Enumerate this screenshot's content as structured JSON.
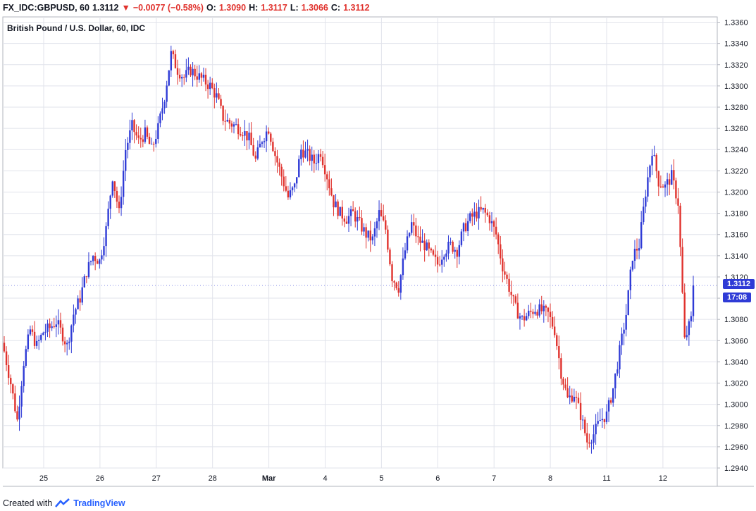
{
  "header": {
    "symbol": "FX_IDC:GBPUSD, 60",
    "last": "1.3112",
    "change": "−0.0077 (−0.58%)",
    "o_label": "O:",
    "o_value": "1.3090",
    "h_label": "H:",
    "h_value": "1.3117",
    "l_label": "L:",
    "l_value": "1.3066",
    "c_label": "C:",
    "c_value": "1.3112"
  },
  "footer": {
    "created_with": "Created with",
    "brand": "TradingView"
  },
  "price_tag": {
    "price": "1.3112",
    "countdown": "17:08"
  },
  "colors": {
    "up": "#2f3bd6",
    "down": "#e0322d",
    "grid": "#e1e3eb",
    "axis_text": "#131722"
  },
  "chart_data": {
    "type": "candlestick",
    "title": "British Pound / U.S. Dollar, 60, IDC",
    "ylim": [
      1.294,
      1.3365
    ],
    "y_ticks": [
      "1.2940",
      "1.2960",
      "1.2980",
      "1.3000",
      "1.3020",
      "1.3040",
      "1.3060",
      "1.3080",
      "1.3100",
      "1.3120",
      "1.3140",
      "1.3160",
      "1.3180",
      "1.3200",
      "1.3220",
      "1.3240",
      "1.3260",
      "1.3280",
      "1.3300",
      "1.3320",
      "1.3340",
      "1.3360"
    ],
    "x_ticks": [
      "25",
      "26",
      "27",
      "28",
      "Mar",
      "4",
      "5",
      "6",
      "7",
      "8",
      "11",
      "12"
    ],
    "grid": true,
    "close_path": [
      [
        0,
        1.305
      ],
      [
        3,
        1.302
      ],
      [
        6,
        1.2985
      ],
      [
        9,
        1.304
      ],
      [
        12,
        1.307
      ],
      [
        15,
        1.3055
      ],
      [
        18,
        1.3068
      ],
      [
        21,
        1.3072
      ],
      [
        24,
        1.3078
      ],
      [
        27,
        1.3065
      ],
      [
        29,
        1.3055
      ],
      [
        32,
        1.3085
      ],
      [
        35,
        1.31
      ],
      [
        38,
        1.3125
      ],
      [
        41,
        1.314
      ],
      [
        44,
        1.3135
      ],
      [
        47,
        1.3165
      ],
      [
        50,
        1.3215
      ],
      [
        53,
        1.318
      ],
      [
        56,
        1.324
      ],
      [
        59,
        1.3262
      ],
      [
        62,
        1.3248
      ],
      [
        65,
        1.3255
      ],
      [
        68,
        1.324
      ],
      [
        71,
        1.326
      ],
      [
        74,
        1.329
      ],
      [
        77,
        1.333
      ],
      [
        80,
        1.3315
      ],
      [
        83,
        1.3308
      ],
      [
        86,
        1.3315
      ],
      [
        89,
        1.331
      ],
      [
        92,
        1.3305
      ],
      [
        95,
        1.33
      ],
      [
        98,
        1.329
      ],
      [
        101,
        1.327
      ],
      [
        104,
        1.3265
      ],
      [
        107,
        1.3262
      ],
      [
        110,
        1.3258
      ],
      [
        113,
        1.325
      ],
      [
        116,
        1.323
      ],
      [
        119,
        1.325
      ],
      [
        122,
        1.326
      ],
      [
        125,
        1.3235
      ],
      [
        128,
        1.3215
      ],
      [
        131,
        1.3195
      ],
      [
        134,
        1.3205
      ],
      [
        137,
        1.324
      ],
      [
        140,
        1.3235
      ],
      [
        143,
        1.3228
      ],
      [
        146,
        1.3238
      ],
      [
        149,
        1.3215
      ],
      [
        152,
        1.319
      ],
      [
        155,
        1.318
      ],
      [
        158,
        1.3175
      ],
      [
        161,
        1.318
      ],
      [
        164,
        1.317
      ],
      [
        167,
        1.316
      ],
      [
        170,
        1.3155
      ],
      [
        173,
        1.318
      ],
      [
        176,
        1.3165
      ],
      [
        179,
        1.312
      ],
      [
        182,
        1.311
      ],
      [
        185,
        1.3145
      ],
      [
        188,
        1.317
      ],
      [
        191,
        1.3155
      ],
      [
        194,
        1.315
      ],
      [
        197,
        1.314
      ],
      [
        200,
        1.3132
      ],
      [
        203,
        1.3145
      ],
      [
        206,
        1.315
      ],
      [
        209,
        1.3145
      ],
      [
        212,
        1.3165
      ],
      [
        215,
        1.3175
      ],
      [
        218,
        1.318
      ],
      [
        221,
        1.3182
      ],
      [
        224,
        1.3175
      ],
      [
        227,
        1.316
      ],
      [
        230,
        1.313
      ],
      [
        233,
        1.311
      ],
      [
        236,
        1.309
      ],
      [
        239,
        1.308
      ],
      [
        242,
        1.3085
      ],
      [
        245,
        1.309
      ],
      [
        248,
        1.3088
      ],
      [
        251,
        1.3085
      ],
      [
        254,
        1.307
      ],
      [
        257,
        1.303
      ],
      [
        260,
        1.3005
      ],
      [
        263,
        1.301
      ],
      [
        266,
        1.299
      ],
      [
        269,
        1.2965
      ],
      [
        272,
        1.2972
      ],
      [
        275,
        1.2985
      ],
      [
        278,
        1.299
      ],
      [
        281,
        1.3015
      ],
      [
        284,
        1.305
      ],
      [
        287,
        1.3085
      ],
      [
        290,
        1.314
      ],
      [
        293,
        1.315
      ],
      [
        296,
        1.32
      ],
      [
        299,
        1.324
      ],
      [
        302,
        1.321
      ],
      [
        305,
        1.3205
      ],
      [
        308,
        1.3215
      ],
      [
        311,
        1.319
      ],
      [
        314,
        1.306
      ],
      [
        317,
        1.308
      ],
      [
        318,
        1.3112
      ]
    ],
    "last_price": 1.3112
  }
}
